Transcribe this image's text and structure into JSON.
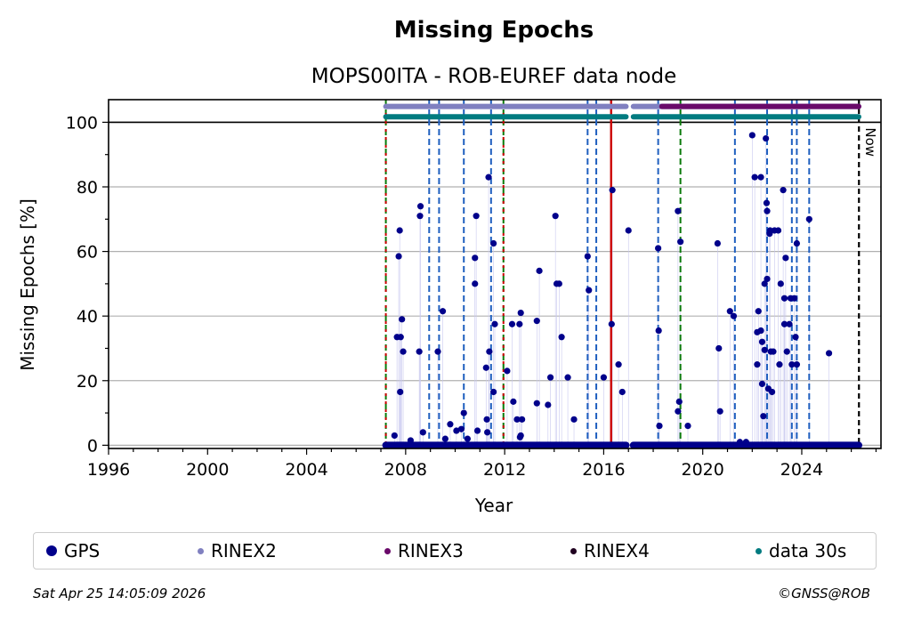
{
  "chart_data": {
    "type": "scatter",
    "title": "Missing Epochs",
    "subtitle": "MOPS00ITA - ROB-EUREF data node",
    "xlabel": "Year",
    "ylabel": "Missing Epochs [%]",
    "xlim": [
      1996,
      2027.2
    ],
    "ylim": [
      -1,
      107
    ],
    "x_ticks": [
      "1996",
      "2000",
      "2004",
      "2008",
      "2012",
      "2016",
      "2020",
      "2024"
    ],
    "y_ticks": [
      "0",
      "20",
      "40",
      "60",
      "80",
      "100"
    ],
    "grid": "horizontal",
    "now_label": "Now",
    "now_year": 2026.31,
    "series": [
      {
        "name": "GPS",
        "color": "#00008b",
        "points": [
          [
            2007.55,
            3
          ],
          [
            2007.65,
            33.5
          ],
          [
            2007.72,
            58.5
          ],
          [
            2007.76,
            66.5
          ],
          [
            2007.8,
            33.5
          ],
          [
            2007.78,
            16.5
          ],
          [
            2007.85,
            39
          ],
          [
            2007.9,
            29
          ],
          [
            2008.2,
            1.5
          ],
          [
            2008.55,
            29
          ],
          [
            2008.6,
            74
          ],
          [
            2008.58,
            71
          ],
          [
            2008.7,
            4
          ],
          [
            2009.3,
            29
          ],
          [
            2009.5,
            41.5
          ],
          [
            2009.6,
            2
          ],
          [
            2009.8,
            6.5
          ],
          [
            2010.05,
            4.5
          ],
          [
            2010.25,
            5
          ],
          [
            2010.35,
            10
          ],
          [
            2010.5,
            2
          ],
          [
            2010.85,
            71
          ],
          [
            2010.8,
            58
          ],
          [
            2010.8,
            50
          ],
          [
            2010.9,
            4.5
          ],
          [
            2011.25,
            24
          ],
          [
            2011.28,
            8
          ],
          [
            2011.3,
            4
          ],
          [
            2011.35,
            83
          ],
          [
            2011.38,
            29
          ],
          [
            2011.55,
            16.5
          ],
          [
            2011.6,
            37.5
          ],
          [
            2011.55,
            62.5
          ],
          [
            2012.1,
            23
          ],
          [
            2012.3,
            37.5
          ],
          [
            2012.35,
            13.5
          ],
          [
            2012.5,
            8
          ],
          [
            2012.6,
            37.5
          ],
          [
            2012.65,
            41
          ],
          [
            2012.7,
            8
          ],
          [
            2012.62,
            2.5
          ],
          [
            2012.65,
            3
          ],
          [
            2013.3,
            38.5
          ],
          [
            2013.4,
            54
          ],
          [
            2013.3,
            13
          ],
          [
            2013.75,
            12.5
          ],
          [
            2013.85,
            21
          ],
          [
            2014.05,
            71
          ],
          [
            2014.1,
            50
          ],
          [
            2014.2,
            50
          ],
          [
            2014.3,
            33.5
          ],
          [
            2014.55,
            21
          ],
          [
            2014.8,
            8
          ],
          [
            2015.35,
            58.5
          ],
          [
            2015.4,
            48
          ],
          [
            2016.0,
            21
          ],
          [
            2016.35,
            79
          ],
          [
            2016.32,
            37.5
          ],
          [
            2016.6,
            25
          ],
          [
            2016.75,
            16.5
          ],
          [
            2017.0,
            66.5
          ],
          [
            2018.2,
            61
          ],
          [
            2018.22,
            35.5
          ],
          [
            2018.25,
            6
          ],
          [
            2019.0,
            10.5
          ],
          [
            2019.05,
            13.5
          ],
          [
            2019.0,
            72.5
          ],
          [
            2019.1,
            63
          ],
          [
            2019.4,
            6
          ],
          [
            2020.6,
            62.5
          ],
          [
            2020.65,
            30
          ],
          [
            2020.7,
            10.5
          ],
          [
            2021.1,
            41.5
          ],
          [
            2021.25,
            40
          ],
          [
            2021.5,
            1
          ],
          [
            2021.75,
            1
          ],
          [
            2022.0,
            96
          ],
          [
            2022.1,
            83
          ],
          [
            2022.2,
            35
          ],
          [
            2022.2,
            25
          ],
          [
            2022.25,
            41.5
          ],
          [
            2022.35,
            83
          ],
          [
            2022.35,
            35.5
          ],
          [
            2022.4,
            32
          ],
          [
            2022.4,
            19
          ],
          [
            2022.45,
            9
          ],
          [
            2022.5,
            50
          ],
          [
            2022.5,
            29.5
          ],
          [
            2022.55,
            95
          ],
          [
            2022.58,
            75
          ],
          [
            2022.6,
            72.5
          ],
          [
            2022.6,
            51.5
          ],
          [
            2022.65,
            17.5
          ],
          [
            2022.7,
            65.5
          ],
          [
            2022.72,
            66.5
          ],
          [
            2022.75,
            29
          ],
          [
            2022.8,
            16.5
          ],
          [
            2022.85,
            29
          ],
          [
            2022.9,
            66.5
          ],
          [
            2023.05,
            66.5
          ],
          [
            2023.1,
            25
          ],
          [
            2023.15,
            50
          ],
          [
            2023.25,
            79
          ],
          [
            2023.3,
            45.5
          ],
          [
            2023.3,
            37.5
          ],
          [
            2023.35,
            58
          ],
          [
            2023.4,
            29
          ],
          [
            2023.5,
            37.5
          ],
          [
            2023.55,
            45.5
          ],
          [
            2023.6,
            25
          ],
          [
            2023.7,
            45.5
          ],
          [
            2023.75,
            33.5
          ],
          [
            2023.8,
            25
          ],
          [
            2023.8,
            62.5
          ],
          [
            2024.3,
            70
          ],
          [
            2025.1,
            28.5
          ]
        ]
      },
      {
        "name": "RINEX2",
        "color": "#8080c0",
        "segments": [
          [
            2007.2,
            2016.9
          ],
          [
            2017.2,
            2026.3
          ]
        ]
      },
      {
        "name": "RINEX3",
        "color": "#6a0a6a",
        "segments": [
          [
            2018.35,
            2026.3
          ]
        ]
      },
      {
        "name": "RINEX4",
        "color": "#200020",
        "segments": []
      },
      {
        "name": "data 30s",
        "color": "#007b80",
        "segments": [
          [
            2007.2,
            2016.9
          ],
          [
            2017.2,
            2026.3
          ]
        ]
      }
    ],
    "zero_coverage": [
      [
        2007.2,
        2016.9
      ],
      [
        2017.2,
        2026.3
      ]
    ],
    "event_lines": {
      "red": [
        2016.3
      ],
      "green": [
        2007.2,
        2011.95,
        2019.1
      ],
      "red_green": [
        2007.2,
        2011.95
      ],
      "blue": [
        2008.95,
        2009.35,
        2010.35,
        2011.45,
        2015.35,
        2015.7,
        2018.2,
        2021.3,
        2022.6,
        2023.6,
        2023.8,
        2024.3
      ]
    }
  },
  "legend": [
    "GPS",
    "RINEX2",
    "RINEX3",
    "RINEX4",
    "data 30s"
  ],
  "footer": {
    "timestamp": "Sat Apr 25 14:05:09 2026",
    "copyright": "©GNSS@ROB"
  }
}
